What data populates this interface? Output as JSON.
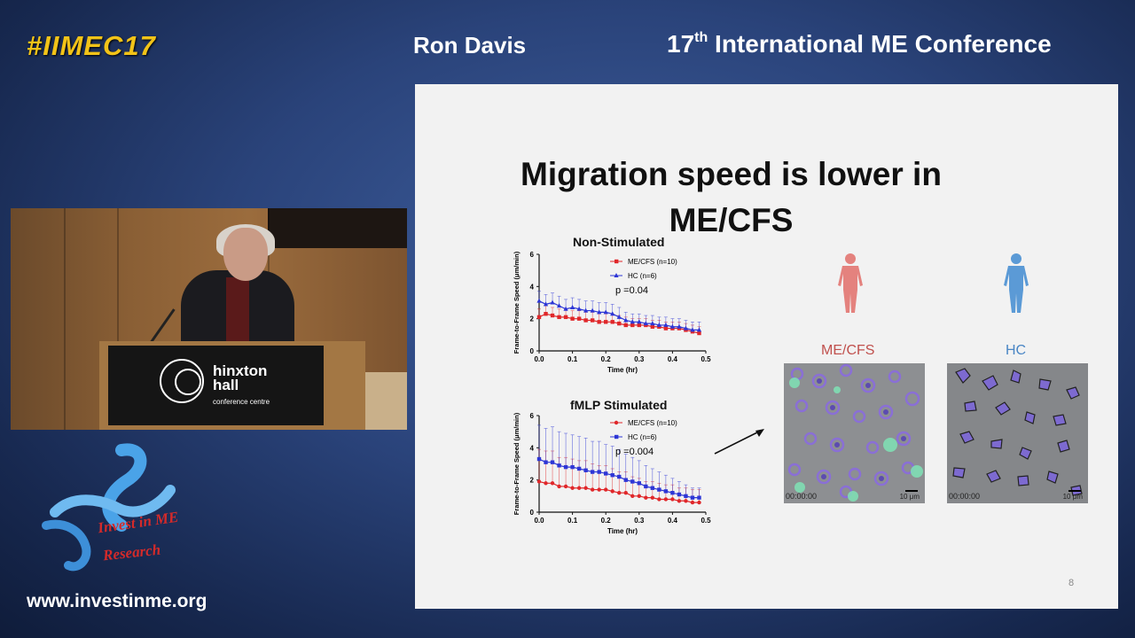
{
  "header": {
    "hashtag": "#IIMEC17",
    "speaker": "Ron Davis",
    "conference_ordinal": "17",
    "conference_suffix": "th",
    "conference_rest": "International ME Conference"
  },
  "video": {
    "podium_brand_line1": "hinxton",
    "podium_brand_line2": "hall",
    "podium_brand_line3": "conference centre"
  },
  "branding": {
    "logo_line1": "Invest in ME",
    "logo_line2": "Research",
    "website": "www.investinme.org"
  },
  "slide": {
    "title_line1": "Migration speed is lower in",
    "title_line2": "ME/CFS",
    "page_number": "8",
    "groups": {
      "mecfs_label": "ME/CFS",
      "hc_label": "HC",
      "mecfs_color": "#c0504d",
      "hc_color": "#4a86c5"
    },
    "micrographs": [
      {
        "timestamp": "00:00:00",
        "scale": "10 μm"
      },
      {
        "timestamp": "00:00:00",
        "scale": "10 μm"
      }
    ]
  },
  "chart_data": [
    {
      "type": "line",
      "title": "Non-Stimulated",
      "xlabel": "Time (hr)",
      "ylabel": "Frame-to-Frame Speed (μm/min)",
      "xlim": [
        0.0,
        0.5
      ],
      "ylim": [
        0,
        6
      ],
      "xticks": [
        "0.0",
        "0.1",
        "0.2",
        "0.3",
        "0.4",
        "0.5"
      ],
      "yticks": [
        "0",
        "2",
        "4",
        "6"
      ],
      "annotation": "p =0.04",
      "legend_position": "top-right",
      "x": [
        0.0,
        0.02,
        0.04,
        0.06,
        0.08,
        0.1,
        0.12,
        0.14,
        0.16,
        0.18,
        0.2,
        0.22,
        0.24,
        0.26,
        0.28,
        0.3,
        0.32,
        0.34,
        0.36,
        0.38,
        0.4,
        0.42,
        0.44,
        0.46,
        0.48
      ],
      "series": [
        {
          "name": "ME/CFS (n=10)",
          "color": "#e0272a",
          "marker": "square",
          "values": [
            2.1,
            2.3,
            2.2,
            2.1,
            2.1,
            2.0,
            2.0,
            1.9,
            1.9,
            1.8,
            1.8,
            1.8,
            1.7,
            1.6,
            1.6,
            1.6,
            1.6,
            1.5,
            1.5,
            1.4,
            1.4,
            1.4,
            1.3,
            1.2,
            1.1
          ],
          "errors": [
            0.5,
            0.5,
            0.5,
            0.5,
            0.5,
            0.5,
            0.5,
            0.5,
            0.5,
            0.5,
            0.5,
            0.5,
            0.5,
            0.5,
            0.4,
            0.4,
            0.4,
            0.4,
            0.4,
            0.4,
            0.4,
            0.4,
            0.4,
            0.4,
            0.4
          ]
        },
        {
          "name": "HC (n=6)",
          "color": "#2d36d6",
          "marker": "triangle",
          "values": [
            3.1,
            2.9,
            3.0,
            2.8,
            2.6,
            2.7,
            2.6,
            2.5,
            2.5,
            2.4,
            2.4,
            2.3,
            2.1,
            1.9,
            1.8,
            1.8,
            1.7,
            1.7,
            1.6,
            1.6,
            1.5,
            1.5,
            1.4,
            1.3,
            1.3
          ],
          "errors": [
            0.6,
            0.6,
            0.6,
            0.6,
            0.6,
            0.6,
            0.6,
            0.6,
            0.6,
            0.6,
            0.6,
            0.6,
            0.6,
            0.5,
            0.5,
            0.5,
            0.5,
            0.5,
            0.5,
            0.5,
            0.5,
            0.5,
            0.5,
            0.5,
            0.5
          ]
        }
      ]
    },
    {
      "type": "line",
      "title": "fMLP Stimulated",
      "xlabel": "Time (hr)",
      "ylabel": "Frame-to-Frame Speed (μm/min)",
      "xlim": [
        0.0,
        0.5
      ],
      "ylim": [
        0,
        6
      ],
      "xticks": [
        "0.0",
        "0.1",
        "0.2",
        "0.3",
        "0.4",
        "0.5"
      ],
      "yticks": [
        "0",
        "2",
        "4",
        "6"
      ],
      "annotation": "p =0.004",
      "legend_position": "top-right",
      "x": [
        0.0,
        0.02,
        0.04,
        0.06,
        0.08,
        0.1,
        0.12,
        0.14,
        0.16,
        0.18,
        0.2,
        0.22,
        0.24,
        0.26,
        0.28,
        0.3,
        0.32,
        0.34,
        0.36,
        0.38,
        0.4,
        0.42,
        0.44,
        0.46,
        0.48
      ],
      "series": [
        {
          "name": "ME/CFS (n=10)",
          "color": "#e0272a",
          "marker": "circle",
          "values": [
            1.9,
            1.8,
            1.8,
            1.6,
            1.6,
            1.5,
            1.5,
            1.5,
            1.4,
            1.4,
            1.4,
            1.3,
            1.2,
            1.2,
            1.0,
            1.0,
            0.9,
            0.9,
            0.8,
            0.8,
            0.8,
            0.7,
            0.7,
            0.6,
            0.6
          ],
          "errors": [
            2.0,
            2.0,
            2.0,
            1.8,
            1.8,
            1.8,
            1.7,
            1.7,
            1.6,
            1.5,
            1.5,
            1.4,
            1.3,
            1.3,
            1.2,
            1.1,
            1.0,
            1.0,
            1.0,
            0.9,
            0.9,
            0.8,
            0.8,
            0.8,
            0.8
          ]
        },
        {
          "name": "HC (n=6)",
          "color": "#2d36d6",
          "marker": "square",
          "values": [
            3.3,
            3.1,
            3.1,
            2.9,
            2.8,
            2.8,
            2.7,
            2.6,
            2.5,
            2.5,
            2.4,
            2.3,
            2.2,
            2.0,
            1.9,
            1.8,
            1.6,
            1.5,
            1.4,
            1.3,
            1.2,
            1.1,
            1.0,
            0.9,
            0.9
          ],
          "errors": [
            2.1,
            2.1,
            2.2,
            2.1,
            2.1,
            2.0,
            2.0,
            2.0,
            1.9,
            1.9,
            1.8,
            1.8,
            1.7,
            1.6,
            1.5,
            1.4,
            1.3,
            1.2,
            1.1,
            1.0,
            0.9,
            0.8,
            0.7,
            0.6,
            0.6
          ]
        }
      ]
    }
  ]
}
